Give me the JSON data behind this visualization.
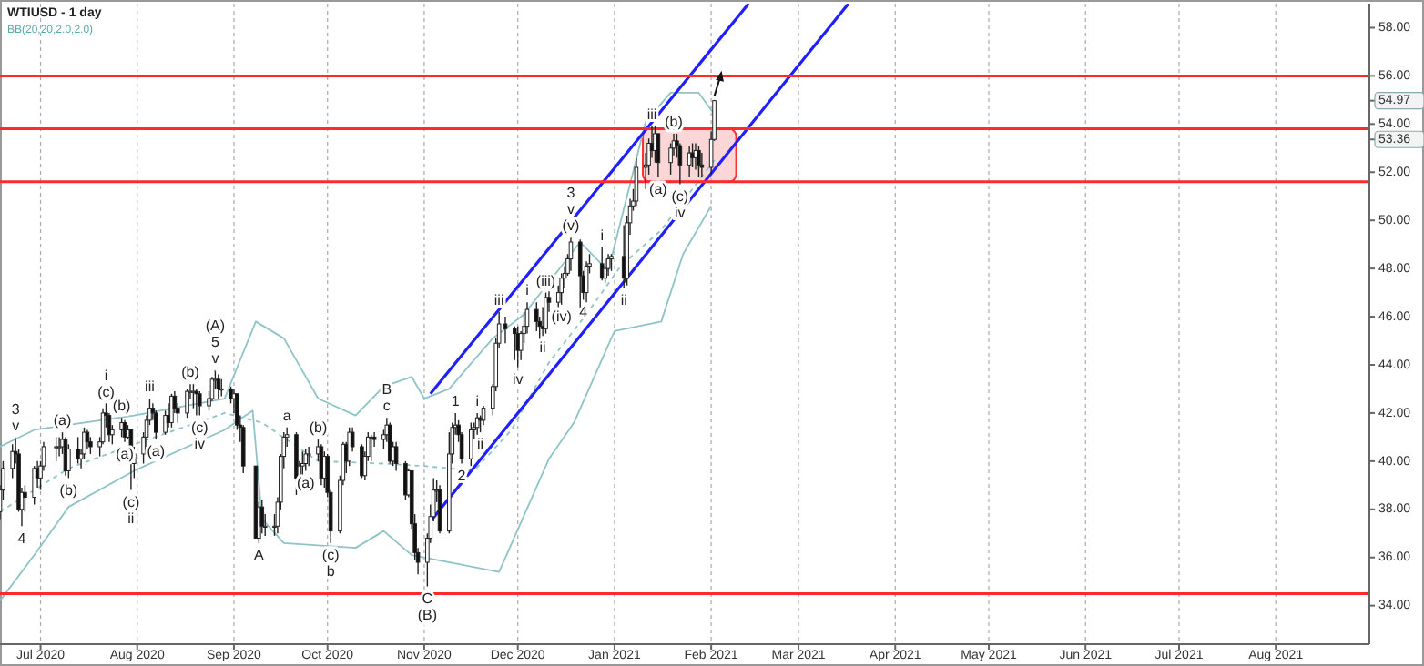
{
  "chart_data": {
    "type": "candlestick",
    "title": "WTIUSD - 1 day",
    "subtitle": "BB(20,20,2.0,2.0)",
    "x": [
      "2020-06-18",
      "2020-06-19",
      "2020-06-22",
      "2020-06-23",
      "2020-06-24",
      "2020-06-25",
      "2020-06-26",
      "2020-06-29",
      "2020-06-30",
      "2020-07-01",
      "2020-07-02",
      "2020-07-06",
      "2020-07-07",
      "2020-07-08",
      "2020-07-09",
      "2020-07-10",
      "2020-07-13",
      "2020-07-14",
      "2020-07-15",
      "2020-07-16",
      "2020-07-17",
      "2020-07-20",
      "2020-07-21",
      "2020-07-22",
      "2020-07-23",
      "2020-07-24",
      "2020-07-27",
      "2020-07-28",
      "2020-07-29",
      "2020-07-30",
      "2020-07-31",
      "2020-08-03",
      "2020-08-04",
      "2020-08-05",
      "2020-08-06",
      "2020-08-07",
      "2020-08-10",
      "2020-08-11",
      "2020-08-12",
      "2020-08-13",
      "2020-08-14",
      "2020-08-17",
      "2020-08-18",
      "2020-08-19",
      "2020-08-20",
      "2020-08-21",
      "2020-08-24",
      "2020-08-25",
      "2020-08-26",
      "2020-08-27",
      "2020-08-28",
      "2020-08-31",
      "2020-09-01",
      "2020-09-02",
      "2020-09-03",
      "2020-09-04",
      "2020-09-08",
      "2020-09-09",
      "2020-09-10",
      "2020-09-11",
      "2020-09-14",
      "2020-09-15",
      "2020-09-16",
      "2020-09-17",
      "2020-09-18",
      "2020-09-21",
      "2020-09-22",
      "2020-09-23",
      "2020-09-24",
      "2020-09-25",
      "2020-09-28",
      "2020-09-29",
      "2020-09-30",
      "2020-10-01",
      "2020-10-02",
      "2020-10-05",
      "2020-10-06",
      "2020-10-07",
      "2020-10-08",
      "2020-10-09",
      "2020-10-12",
      "2020-10-13",
      "2020-10-14",
      "2020-10-15",
      "2020-10-16",
      "2020-10-19",
      "2020-10-20",
      "2020-10-21",
      "2020-10-22",
      "2020-10-23",
      "2020-10-26",
      "2020-10-27",
      "2020-10-28",
      "2020-10-29",
      "2020-10-30",
      "2020-11-02",
      "2020-11-03",
      "2020-11-04",
      "2020-11-05",
      "2020-11-06",
      "2020-11-09",
      "2020-11-10",
      "2020-11-11",
      "2020-11-12",
      "2020-11-13",
      "2020-11-16",
      "2020-11-17",
      "2020-11-18",
      "2020-11-19",
      "2020-11-20",
      "2020-11-23",
      "2020-11-24",
      "2020-11-25",
      "2020-11-27",
      "2020-11-30",
      "2020-12-01",
      "2020-12-02",
      "2020-12-03",
      "2020-12-04",
      "2020-12-07",
      "2020-12-08",
      "2020-12-09",
      "2020-12-10",
      "2020-12-11",
      "2020-12-14",
      "2020-12-15",
      "2020-12-16",
      "2020-12-17",
      "2020-12-18",
      "2020-12-21",
      "2020-12-22",
      "2020-12-23",
      "2020-12-24",
      "2020-12-28",
      "2020-12-29",
      "2020-12-30",
      "2020-12-31",
      "2021-01-04",
      "2021-01-05",
      "2021-01-06",
      "2021-01-07",
      "2021-01-08",
      "2021-01-11",
      "2021-01-12",
      "2021-01-13",
      "2021-01-14",
      "2021-01-15",
      "2021-01-19",
      "2021-01-20",
      "2021-01-21",
      "2021-01-22",
      "2021-01-25",
      "2021-01-26",
      "2021-01-27",
      "2021-01-28",
      "2021-01-29",
      "2021-02-01",
      "2021-02-02"
    ],
    "ohlc": [
      [
        37.9,
        39.0,
        37.6,
        38.8
      ],
      [
        38.8,
        40.0,
        38.4,
        39.7
      ],
      [
        39.7,
        40.7,
        39.3,
        40.4
      ],
      [
        40.4,
        41.0,
        39.9,
        40.3
      ],
      [
        40.3,
        40.5,
        37.9,
        38.0
      ],
      [
        38.0,
        38.9,
        37.3,
        38.7
      ],
      [
        38.7,
        39.0,
        37.9,
        38.5
      ],
      [
        38.5,
        39.8,
        38.2,
        39.7
      ],
      [
        39.7,
        40.0,
        38.9,
        39.3
      ],
      [
        39.3,
        40.0,
        38.8,
        39.8
      ],
      [
        39.8,
        40.8,
        39.6,
        40.6
      ],
      [
        40.6,
        41.0,
        40.0,
        40.6
      ],
      [
        40.6,
        41.0,
        40.2,
        40.6
      ],
      [
        40.6,
        41.2,
        40.3,
        40.9
      ],
      [
        40.9,
        41.0,
        39.4,
        39.6
      ],
      [
        39.6,
        40.7,
        39.3,
        40.5
      ],
      [
        40.5,
        41.0,
        39.9,
        40.1
      ],
      [
        40.1,
        40.5,
        39.7,
        40.3
      ],
      [
        40.3,
        41.4,
        40.1,
        41.2
      ],
      [
        41.2,
        41.3,
        40.5,
        40.8
      ],
      [
        40.8,
        41.0,
        40.3,
        40.6
      ],
      [
        40.6,
        41.0,
        40.2,
        40.8
      ],
      [
        40.8,
        42.2,
        40.7,
        42.0
      ],
      [
        42.0,
        42.4,
        41.4,
        41.9
      ],
      [
        41.9,
        42.0,
        40.8,
        41.1
      ],
      [
        41.1,
        41.5,
        40.7,
        41.3
      ],
      [
        41.3,
        41.8,
        41.0,
        41.6
      ],
      [
        41.6,
        41.7,
        40.8,
        41.0
      ],
      [
        41.0,
        41.5,
        40.9,
        41.3
      ],
      [
        41.3,
        41.3,
        38.8,
        39.9
      ],
      [
        39.9,
        40.6,
        39.3,
        40.3
      ],
      [
        40.3,
        41.2,
        39.9,
        41.0
      ],
      [
        41.0,
        41.9,
        40.6,
        41.7
      ],
      [
        41.7,
        42.6,
        41.5,
        42.2
      ],
      [
        42.2,
        42.4,
        41.7,
        42.0
      ],
      [
        42.0,
        42.1,
        40.9,
        41.2
      ],
      [
        41.2,
        42.1,
        41.1,
        41.9
      ],
      [
        41.9,
        42.4,
        41.4,
        41.6
      ],
      [
        41.6,
        42.8,
        41.4,
        42.7
      ],
      [
        42.7,
        42.9,
        42.0,
        42.2
      ],
      [
        42.2,
        42.4,
        41.6,
        42.0
      ],
      [
        42.0,
        43.0,
        41.8,
        42.9
      ],
      [
        42.9,
        43.2,
        42.6,
        42.9
      ],
      [
        42.9,
        43.2,
        42.2,
        42.9
      ],
      [
        42.9,
        43.0,
        41.9,
        42.8
      ],
      [
        42.8,
        42.9,
        41.9,
        42.3
      ],
      [
        42.3,
        42.9,
        42.1,
        42.6
      ],
      [
        42.6,
        43.5,
        42.5,
        43.4
      ],
      [
        43.4,
        43.8,
        43.0,
        43.4
      ],
      [
        43.4,
        43.6,
        42.6,
        43.0
      ],
      [
        43.0,
        43.4,
        42.7,
        43.0
      ],
      [
        43.0,
        43.1,
        42.4,
        42.6
      ],
      [
        42.6,
        43.0,
        42.0,
        42.8
      ],
      [
        42.8,
        42.8,
        41.3,
        41.5
      ],
      [
        41.5,
        41.9,
        40.8,
        41.4
      ],
      [
        41.4,
        41.5,
        39.5,
        39.8
      ],
      [
        39.8,
        39.8,
        36.8,
        36.8
      ],
      [
        36.8,
        38.3,
        36.6,
        38.1
      ],
      [
        38.1,
        38.4,
        37.0,
        37.3
      ],
      [
        37.3,
        37.8,
        36.9,
        37.3
      ],
      [
        37.3,
        37.8,
        36.9,
        37.3
      ],
      [
        37.3,
        38.5,
        37.0,
        38.3
      ],
      [
        38.3,
        40.3,
        38.0,
        40.2
      ],
      [
        40.2,
        41.2,
        39.7,
        41.0
      ],
      [
        41.0,
        41.4,
        40.6,
        41.1
      ],
      [
        41.1,
        41.2,
        38.6,
        39.3
      ],
      [
        39.3,
        40.0,
        38.9,
        39.8
      ],
      [
        39.8,
        40.4,
        39.4,
        39.9
      ],
      [
        39.9,
        40.5,
        39.6,
        40.3
      ],
      [
        40.3,
        40.6,
        39.8,
        40.3
      ],
      [
        40.3,
        40.9,
        40.0,
        40.6
      ],
      [
        40.6,
        40.7,
        39.0,
        39.3
      ],
      [
        39.3,
        40.4,
        38.9,
        40.2
      ],
      [
        40.2,
        40.3,
        38.5,
        38.7
      ],
      [
        38.7,
        38.8,
        36.6,
        37.1
      ],
      [
        37.1,
        39.4,
        37.0,
        39.2
      ],
      [
        39.2,
        40.8,
        39.0,
        40.7
      ],
      [
        40.7,
        40.8,
        39.5,
        40.0
      ],
      [
        40.0,
        41.4,
        39.8,
        41.2
      ],
      [
        41.2,
        41.4,
        40.4,
        40.6
      ],
      [
        40.6,
        40.7,
        39.3,
        39.4
      ],
      [
        39.4,
        40.4,
        39.2,
        40.2
      ],
      [
        40.2,
        41.2,
        40.0,
        41.0
      ],
      [
        41.0,
        41.1,
        40.0,
        41.0
      ],
      [
        41.0,
        41.2,
        40.6,
        40.9
      ],
      [
        40.9,
        41.3,
        40.5,
        41.1
      ],
      [
        41.1,
        41.8,
        40.8,
        41.5
      ],
      [
        41.5,
        41.6,
        39.9,
        40.0
      ],
      [
        40.0,
        40.8,
        39.8,
        40.6
      ],
      [
        40.6,
        40.8,
        39.6,
        39.9
      ],
      [
        39.9,
        40.0,
        38.4,
        38.6
      ],
      [
        38.6,
        39.7,
        38.5,
        39.6
      ],
      [
        39.6,
        39.6,
        37.2,
        37.4
      ],
      [
        37.4,
        37.8,
        35.9,
        36.2
      ],
      [
        36.2,
        36.4,
        35.3,
        35.8
      ],
      [
        35.8,
        37.0,
        34.8,
        36.8
      ],
      [
        36.8,
        38.2,
        36.6,
        37.7
      ],
      [
        37.7,
        39.3,
        37.5,
        38.8
      ],
      [
        38.8,
        39.2,
        38.3,
        38.8
      ],
      [
        38.8,
        39.0,
        37.0,
        37.1
      ],
      [
        37.1,
        41.2,
        37.0,
        40.3
      ],
      [
        40.3,
        41.6,
        39.9,
        41.4
      ],
      [
        41.4,
        42.0,
        41.1,
        41.5
      ],
      [
        41.5,
        41.7,
        40.8,
        41.1
      ],
      [
        41.1,
        41.2,
        39.9,
        40.1
      ],
      [
        40.1,
        41.6,
        39.8,
        41.3
      ],
      [
        41.3,
        41.6,
        40.9,
        41.4
      ],
      [
        41.4,
        42.0,
        41.1,
        41.8
      ],
      [
        41.8,
        41.9,
        41.2,
        41.7
      ],
      [
        41.7,
        42.3,
        41.5,
        42.2
      ],
      [
        42.2,
        43.2,
        41.9,
        43.1
      ],
      [
        43.1,
        45.1,
        42.9,
        44.9
      ],
      [
        44.9,
        46.2,
        44.7,
        45.7
      ],
      [
        45.7,
        46.0,
        44.9,
        45.5
      ],
      [
        45.5,
        45.6,
        44.2,
        45.3
      ],
      [
        45.3,
        45.6,
        43.9,
        44.6
      ],
      [
        44.6,
        45.4,
        44.2,
        45.3
      ],
      [
        45.3,
        46.2,
        44.9,
        45.6
      ],
      [
        45.6,
        46.6,
        45.3,
        46.3
      ],
      [
        46.3,
        46.6,
        45.4,
        45.8
      ],
      [
        45.8,
        46.0,
        45.0,
        45.6
      ],
      [
        45.6,
        46.4,
        45.2,
        45.5
      ],
      [
        45.5,
        47.0,
        45.3,
        46.8
      ],
      [
        46.8,
        47.2,
        46.2,
        46.6
      ],
      [
        46.6,
        47.3,
        46.4,
        47.0
      ],
      [
        47.0,
        47.8,
        46.5,
        47.6
      ],
      [
        47.6,
        48.1,
        47.2,
        47.8
      ],
      [
        47.8,
        48.6,
        47.7,
        48.4
      ],
      [
        48.4,
        49.3,
        47.9,
        49.1
      ],
      [
        49.1,
        49.2,
        46.2,
        47.7
      ],
      [
        47.7,
        47.9,
        46.7,
        47.0
      ],
      [
        47.0,
        48.3,
        46.6,
        48.1
      ],
      [
        48.1,
        48.6,
        47.8,
        48.2
      ],
      [
        48.2,
        48.9,
        47.5,
        47.6
      ],
      [
        47.6,
        48.4,
        47.4,
        48.0
      ],
      [
        48.0,
        48.6,
        47.7,
        48.4
      ],
      [
        48.4,
        48.6,
        47.9,
        48.5
      ],
      [
        48.5,
        49.8,
        47.2,
        47.6
      ],
      [
        47.6,
        50.2,
        47.3,
        49.9
      ],
      [
        49.9,
        50.9,
        49.4,
        50.6
      ],
      [
        50.6,
        51.3,
        50.4,
        50.8
      ],
      [
        50.8,
        52.6,
        50.6,
        52.2
      ],
      [
        52.2,
        52.8,
        51.3,
        52.3
      ],
      [
        52.3,
        53.4,
        51.9,
        53.2
      ],
      [
        53.2,
        53.9,
        52.6,
        52.9
      ],
      [
        52.9,
        53.9,
        52.4,
        53.6
      ],
      [
        53.6,
        53.6,
        51.8,
        52.4
      ],
      [
        52.4,
        53.2,
        51.9,
        53.0
      ],
      [
        53.0,
        53.6,
        52.7,
        53.3
      ],
      [
        53.3,
        53.6,
        52.6,
        53.1
      ],
      [
        53.1,
        53.2,
        51.5,
        52.3
      ],
      [
        52.3,
        53.1,
        51.8,
        52.8
      ],
      [
        52.8,
        53.2,
        52.2,
        52.6
      ],
      [
        52.6,
        53.2,
        52.1,
        52.9
      ],
      [
        52.9,
        53.1,
        51.8,
        52.3
      ],
      [
        52.3,
        52.8,
        51.8,
        52.2
      ],
      [
        52.2,
        53.7,
        51.9,
        53.36
      ],
      [
        53.36,
        55.0,
        53.3,
        54.97
      ]
    ],
    "series": [
      {
        "type": "line",
        "color": "#8fc3c6",
        "x": [
          "2020-06-18",
          "2020-06-29",
          "2020-07-31",
          "2020-08-29",
          "2020-09-08",
          "2020-09-17",
          "2020-09-28",
          "2020-10-10",
          "2020-10-19",
          "2020-10-28",
          "2020-11-01",
          "2020-11-09",
          "2020-11-23",
          "2020-12-03",
          "2020-12-21",
          "2020-12-30",
          "2021-01-11",
          "2021-01-19",
          "2021-01-28",
          "2021-02-02"
        ],
        "values": [
          40.6,
          41.3,
          41.9,
          42.6,
          45.8,
          45.1,
          42.6,
          41.9,
          43.1,
          43.5,
          42.6,
          43.0,
          45.1,
          46.1,
          49.1,
          47.9,
          54.1,
          55.3,
          55.3,
          54.4
        ]
      },
      {
        "type": "line",
        "color": "#8fc3c6",
        "line_style": "dotted",
        "x": [
          "2020-06-18",
          "2020-07-10",
          "2020-07-31",
          "2020-08-29",
          "2020-09-10",
          "2020-09-28",
          "2020-10-19",
          "2020-11-01",
          "2020-11-17",
          "2020-11-29",
          "2020-12-11",
          "2020-12-23",
          "2021-01-03",
          "2021-01-16",
          "2021-02-02"
        ],
        "values": [
          37.9,
          39.7,
          40.7,
          42.0,
          41.6,
          40.0,
          39.9,
          39.8,
          39.6,
          41.3,
          44.1,
          46.1,
          48.1,
          49.6,
          52.5
        ]
      },
      {
        "type": "line",
        "color": "#8fc3c6",
        "x": [
          "2020-06-18",
          "2020-06-29",
          "2020-07-10",
          "2020-07-31",
          "2020-08-29",
          "2020-09-07",
          "2020-09-10",
          "2020-09-17",
          "2020-10-10",
          "2020-10-19",
          "2020-10-28",
          "2020-11-13",
          "2020-11-25",
          "2020-12-11",
          "2020-12-19",
          "2021-01-01",
          "2021-01-16",
          "2021-01-23",
          "2021-02-01"
        ],
        "values": [
          34.2,
          36.1,
          38.1,
          39.6,
          41.3,
          42.1,
          37.6,
          36.6,
          36.4,
          37.1,
          36.1,
          35.7,
          35.4,
          40.1,
          41.6,
          45.4,
          45.8,
          48.6,
          50.6
        ]
      },
      {
        "type": "line",
        "color": "#1f1fff",
        "x": [
          "2020-11-03",
          "2021-02-13"
        ],
        "values": [
          42.8,
          59
        ]
      },
      {
        "type": "line",
        "color": "#1f1fff",
        "x": [
          "2020-11-03",
          "2021-03-17"
        ],
        "values": [
          37.5,
          59
        ]
      }
    ],
    "xlim": [
      "2020-06-18",
      "2021-08-31"
    ],
    "ylim": [
      32.4,
      59
    ],
    "xticks": [
      {
        "value": "2020-07-01",
        "label": "Jul 2020"
      },
      {
        "value": "2020-08-01",
        "label": "Aug 2020"
      },
      {
        "value": "2020-09-01",
        "label": "Sep 2020"
      },
      {
        "value": "2020-10-01",
        "label": "Oct 2020"
      },
      {
        "value": "2020-11-01",
        "label": "Nov 2020"
      },
      {
        "value": "2020-12-01",
        "label": "Dec 2020"
      },
      {
        "value": "2021-01-01",
        "label": "Jan 2021"
      },
      {
        "value": "2021-02-01",
        "label": "Feb 2021"
      },
      {
        "value": "2021-03-01",
        "label": "Mar 2021"
      },
      {
        "value": "2021-04-01",
        "label": "Apr 2021"
      },
      {
        "value": "2021-05-01",
        "label": "May 2021"
      },
      {
        "value": "2021-06-01",
        "label": "Jun 2021"
      },
      {
        "value": "2021-07-01",
        "label": "Jul 2021"
      },
      {
        "value": "2021-08-01",
        "label": "Aug 2021"
      }
    ],
    "yticks": [
      {
        "value": 34,
        "label": "34.00"
      },
      {
        "value": 36,
        "label": "36.00"
      },
      {
        "value": 38,
        "label": "38.00"
      },
      {
        "value": 40,
        "label": "40.00"
      },
      {
        "value": 42,
        "label": "42.00"
      },
      {
        "value": 44,
        "label": "44.00"
      },
      {
        "value": 46,
        "label": "46.00"
      },
      {
        "value": 48,
        "label": "48.00"
      },
      {
        "value": 50,
        "label": "50.00"
      },
      {
        "value": 52,
        "label": "52.00"
      },
      {
        "value": 54,
        "label": "54.00"
      },
      {
        "value": 56,
        "label": "56.00"
      },
      {
        "value": 58,
        "label": "58.00"
      },
      54.97,
      53.36
    ],
    "grid": "x",
    "ref_lines": [
      {
        "axis": "y",
        "value": 56.0,
        "color": "#ff2a2a"
      },
      {
        "axis": "y",
        "value": 53.8,
        "color": "#ff2a2a"
      },
      {
        "axis": "y",
        "value": 51.6,
        "color": "#ff2a2a"
      },
      {
        "axis": "y",
        "value": 34.5,
        "color": "#ff2a2a"
      }
    ],
    "annotations": [
      {
        "text": "3",
        "x": "2020-06-23",
        "y": 41.0
      },
      {
        "text": "v",
        "x": "2020-06-23",
        "y": 41.0
      },
      {
        "text": "4",
        "x": "2020-06-25",
        "y": 37.3
      },
      {
        "text": "(a)",
        "x": "2020-07-08",
        "y": 41.2
      },
      {
        "text": "(b)",
        "x": "2020-07-10",
        "y": 39.3
      },
      {
        "text": "i",
        "x": "2020-07-22",
        "y": 42.4
      },
      {
        "text": "(c)",
        "x": "2020-07-22",
        "y": 42.4
      },
      {
        "text": "(b)",
        "x": "2020-07-27",
        "y": 41.8
      },
      {
        "text": "(a)",
        "x": "2020-07-28",
        "y": 40.8
      },
      {
        "text": "(c)",
        "x": "2020-07-30",
        "y": 38.8
      },
      {
        "text": "ii",
        "x": "2020-07-30",
        "y": 38.8
      },
      {
        "text": "iii",
        "x": "2020-08-05",
        "y": 42.6
      },
      {
        "text": "(a)",
        "x": "2020-08-07",
        "y": 40.9
      },
      {
        "text": "(b)",
        "x": "2020-08-18",
        "y": 43.2
      },
      {
        "text": "(c)",
        "x": "2020-08-21",
        "y": 41.9
      },
      {
        "text": "iv",
        "x": "2020-08-21",
        "y": 41.9
      },
      {
        "text": "(A)",
        "x": "2020-08-26",
        "y": 43.8
      },
      {
        "text": "5",
        "x": "2020-08-26",
        "y": 43.8
      },
      {
        "text": "v",
        "x": "2020-08-26",
        "y": 43.8
      },
      {
        "text": "A",
        "x": "2020-09-09",
        "y": 36.6
      },
      {
        "text": "a",
        "x": "2020-09-18",
        "y": 41.4
      },
      {
        "text": "(b)",
        "x": "2020-09-28",
        "y": 40.9
      },
      {
        "text": "(a)",
        "x": "2020-09-24",
        "y": 39.6
      },
      {
        "text": "(c)",
        "x": "2020-10-02",
        "y": 36.6
      },
      {
        "text": "b",
        "x": "2020-10-02",
        "y": 36.6
      },
      {
        "text": "B",
        "x": "2020-10-20",
        "y": 41.8
      },
      {
        "text": "c",
        "x": "2020-10-20",
        "y": 41.8
      },
      {
        "text": "C",
        "x": "2020-11-02",
        "y": 34.8
      },
      {
        "text": "(B)",
        "x": "2020-11-02",
        "y": 34.8
      },
      {
        "text": "1",
        "x": "2020-11-11",
        "y": 42.0
      },
      {
        "text": "i",
        "x": "2020-11-18",
        "y": 42.0
      },
      {
        "text": "ii",
        "x": "2020-11-19",
        "y": 41.2
      },
      {
        "text": "2",
        "x": "2020-11-13",
        "y": 39.9
      },
      {
        "text": "iii",
        "x": "2020-11-25",
        "y": 46.2
      },
      {
        "text": "i",
        "x": "2020-12-04",
        "y": 46.6
      },
      {
        "text": "ii",
        "x": "2020-12-09",
        "y": 45.2
      },
      {
        "text": "iv",
        "x": "2020-12-01",
        "y": 43.9
      },
      {
        "text": "(iii)",
        "x": "2020-12-10",
        "y": 47.0
      },
      {
        "text": "(iv)",
        "x": "2020-12-15",
        "y": 46.5
      },
      {
        "text": "3",
        "x": "2020-12-18",
        "y": 49.3
      },
      {
        "text": "v",
        "x": "2020-12-18",
        "y": 49.3
      },
      {
        "text": "(v)",
        "x": "2020-12-18",
        "y": 49.3
      },
      {
        "text": "i",
        "x": "2020-12-28",
        "y": 48.9
      },
      {
        "text": "4",
        "x": "2020-12-22",
        "y": 46.7
      },
      {
        "text": "ii",
        "x": "2021-01-04",
        "y": 47.2
      },
      {
        "text": "iii",
        "x": "2021-01-13",
        "y": 53.9
      },
      {
        "text": "(b)",
        "x": "2021-01-20",
        "y": 53.6
      },
      {
        "text": "(a)",
        "x": "2021-01-15",
        "y": 51.8
      },
      {
        "text": "(c)",
        "x": "2021-01-22",
        "y": 51.5
      },
      {
        "text": "iv",
        "x": "2021-01-22",
        "y": 51.5
      }
    ]
  }
}
